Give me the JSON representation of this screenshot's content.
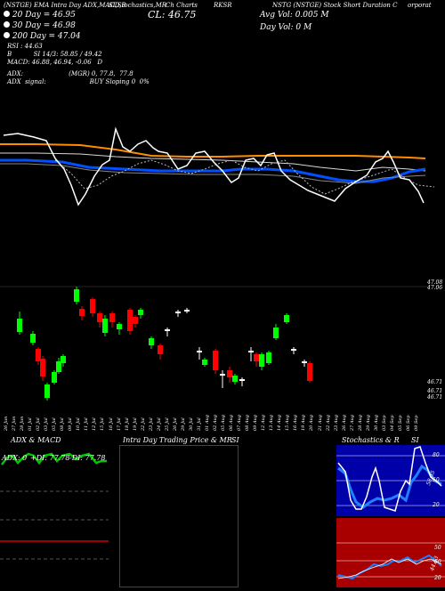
{
  "header": {
    "title_line": "(NSTGE) EMA Intra Day ADX,MACD,B SI,Stochastics,MR Ch Charts RKSR NSTG (NSTGE) Stock Short Duration C...",
    "title_segments": [
      {
        "text": "(NSTGE) EMA Intra Day ADX,MACD,B"
      },
      {
        "text": "SI,Stochastics,MR"
      },
      {
        "text": "Ch Charts"
      },
      {
        "text": "RKSR"
      },
      {
        "text": "NSTG (NSTGE) Stock Short Duration C"
      },
      {
        "text": "orporat"
      }
    ],
    "close_label": "CL: 46.75",
    "avg_vol": "Avg Vol: 0.005 M",
    "day_vol": "Day Vol: 0   M"
  },
  "ema_legend": {
    "ema20": {
      "label": "20  Day = 46.95",
      "color": "#ffffff"
    },
    "ema30": {
      "label": "30  Day = 46.98",
      "color": "#ffffff"
    },
    "ema200": {
      "label": "200  Day = 47.04",
      "color": "#ffffff"
    }
  },
  "indicators": {
    "rsi": "RSI : 44.63",
    "bsi": "B           SI 14/3: 58.85 / 49.42",
    "macd": "MACD: 46.88, 46.94, -0.06   D",
    "adx": "ADX:                       (MGR) 0, 77.8,  77.8",
    "adx_signal": "ADX  signal:                      BUY Sloping 0  0%"
  },
  "price_axis": {
    "top_labels": [
      "47.08",
      "47.06"
    ],
    "bottom_labels": [
      "46.71",
      "46.71",
      "46.71"
    ]
  },
  "dates": [
    "26 Jun",
    "27 Jun",
    "28 Jun",
    "01 Jul",
    "02 Jul",
    "03 Jul",
    "05 Jul",
    "08 Jul",
    "09 Jul",
    "10 Jul",
    "11 Jul",
    "12 Jul",
    "15 Jul",
    "16 Jul",
    "17 Jul",
    "18 Jul",
    "19 Jul",
    "22 Jul",
    "23 Jul",
    "24 Jul",
    "25 Jul",
    "26 Jul",
    "29 Jul",
    "30 Jul",
    "31 Jul",
    "01 Aug",
    "02 Aug",
    "05 Aug",
    "06 Aug",
    "07 Aug",
    "08 Aug",
    "09 Aug",
    "12 Aug",
    "13 Aug",
    "14 Aug",
    "15 Aug",
    "16 Aug",
    "19 Aug",
    "20 Aug",
    "21 Aug",
    "22 Aug",
    "23 Aug",
    "26 Aug",
    "27 Aug",
    "28 Aug",
    "29 Aug",
    "30 Aug",
    "03 Sep",
    "04 Sep",
    "05 Sep",
    "06 Sep",
    "09 Sep"
  ],
  "bottom_panels": {
    "adx_panel": {
      "title": "ADX  & MACD",
      "labels": {
        "adx": "ADX: 0",
        "plus_di": "+DI: 77.78",
        "minus_di": "-DI: 77.78"
      }
    },
    "mr_panel": {
      "title_left": "Intra  Day Trading Price  & MR",
      "title_right": "SI"
    },
    "stoch_panel": {
      "title_left": "Stochastics & R",
      "title_right": "SI",
      "stoch_levels": [
        "80",
        "50",
        "20"
      ],
      "stoch_value": "58.85",
      "rsi_levels": [
        "50",
        "50",
        "20"
      ],
      "rsi_value": "44.63"
    }
  },
  "colors": {
    "background": "#000000",
    "up_candle": "#00ff00",
    "down_candle": "#ff0000",
    "ema_blue": "#0040ff",
    "ema_orange": "#ff8c00",
    "stoch_bg": "#0000a0",
    "rsi_bg": "#a00000"
  },
  "chart_data": {
    "type": "line",
    "title": "",
    "series": [],
    "candles_note": ""
  }
}
